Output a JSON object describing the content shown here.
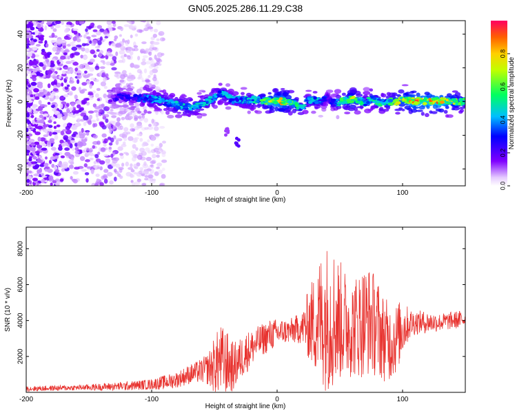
{
  "figure": {
    "title": "GN05.2025.286.11.29.C38"
  },
  "chart_data": [
    {
      "type": "heatmap",
      "xlabel": "Height of straight line (km)",
      "ylabel": "Frequency (Hz)",
      "xlim": [
        -200,
        150
      ],
      "ylim": [
        -50,
        48
      ],
      "xticks": [
        -200,
        -100,
        0,
        100
      ],
      "yticks": [
        -40,
        -20,
        0,
        20,
        40
      ],
      "colorbar": {
        "label": "Normalized spectral amplitude",
        "range": [
          0,
          1
        ],
        "ticks": [
          "0.0",
          "0.2",
          "0.4",
          "0.6",
          "0.8"
        ]
      },
      "ridge": {
        "x": [
          -133,
          -125,
          -115,
          -105,
          -95,
          -85,
          -75,
          -65,
          -55,
          -45,
          -35,
          -25,
          -15,
          -5,
          0,
          5,
          10,
          15,
          20,
          25,
          30,
          35,
          40,
          45,
          50,
          55,
          60,
          65,
          70,
          75,
          80,
          85,
          90,
          95,
          100,
          110,
          120,
          130,
          140,
          150
        ],
        "freq": [
          2,
          3,
          2,
          2,
          1,
          -1,
          -3,
          -3,
          0,
          5,
          1,
          1,
          1,
          0,
          0,
          0,
          0,
          -2,
          -4,
          1,
          1,
          0,
          3,
          -1,
          0,
          1,
          1,
          1,
          -1,
          2,
          0,
          -1,
          0,
          0,
          1,
          0,
          0,
          0,
          0,
          0
        ],
        "amplitude": [
          0.2,
          0.3,
          0.3,
          0.4,
          0.5,
          0.5,
          0.55,
          0.5,
          0.5,
          0.5,
          0.45,
          0.5,
          0.55,
          0.8,
          0.9,
          0.9,
          0.75,
          0.6,
          0.5,
          0.45,
          0.55,
          0.4,
          0.35,
          0.35,
          0.6,
          0.65,
          0.8,
          0.6,
          0.5,
          0.55,
          0.6,
          0.55,
          0.6,
          0.75,
          0.8,
          0.95,
          0.95,
          0.95,
          0.75,
          0.6
        ]
      },
      "noise_region": {
        "x_range": [
          -200,
          -100
        ],
        "freq_range": [
          -50,
          48
        ],
        "amplitude_range": [
          0.15,
          0.2
        ]
      },
      "spurs": [
        {
          "x": -40,
          "freq": -18,
          "amplitude": 0.12
        },
        {
          "x": -32,
          "freq": -24,
          "amplitude": 0.2
        }
      ]
    },
    {
      "type": "line",
      "xlabel": "Height of straight line (km)",
      "ylabel": "SNR (10 * v/v)",
      "xlim": [
        -200,
        150
      ],
      "ylim": [
        0,
        9200
      ],
      "xticks": [
        -200,
        -100,
        0,
        100
      ],
      "yticks": [
        2000,
        4000,
        6000,
        8000
      ],
      "series": [
        {
          "color": "#e8332f",
          "envelope": {
            "x": [
              -200,
              -180,
              -160,
              -140,
              -120,
              -100,
              -90,
              -80,
              -75,
              -70,
              -65,
              -60,
              -55,
              -50,
              -45,
              -40,
              -35,
              -30,
              -25,
              -20,
              -15,
              -10,
              -5,
              0,
              5,
              10,
              15,
              20,
              25,
              30,
              35,
              40,
              45,
              50,
              55,
              60,
              65,
              70,
              75,
              80,
              85,
              90,
              95,
              100,
              105,
              110,
              120,
              130,
              140,
              150
            ],
            "center": [
              200,
              230,
              260,
              300,
              350,
              450,
              550,
              700,
              850,
              1000,
              1100,
              1200,
              1300,
              1500,
              1800,
              1600,
              1400,
              1800,
              2200,
              2500,
              2800,
              3000,
              3200,
              3300,
              3400,
              3400,
              3500,
              3600,
              3800,
              3900,
              4100,
              4200,
              4200,
              4000,
              3800,
              3600,
              3800,
              4000,
              4000,
              3600,
              3000,
              2800,
              3000,
              3600,
              3800,
              3900,
              3900,
              3900,
              4000,
              4100
            ],
            "spread": [
              150,
              150,
              150,
              200,
              250,
              300,
              400,
              450,
              500,
              550,
              600,
              700,
              900,
              1600,
              2000,
              1800,
              1400,
              1200,
              1200,
              1000,
              900,
              900,
              900,
              800,
              700,
              700,
              800,
              900,
              2000,
              2800,
              3800,
              4200,
              4000,
              3400,
              3000,
              2800,
              3000,
              3200,
              3000,
              2800,
              2400,
              2200,
              2000,
              1600,
              900,
              700,
              600,
              500,
              500,
              500
            ]
          }
        }
      ]
    }
  ]
}
